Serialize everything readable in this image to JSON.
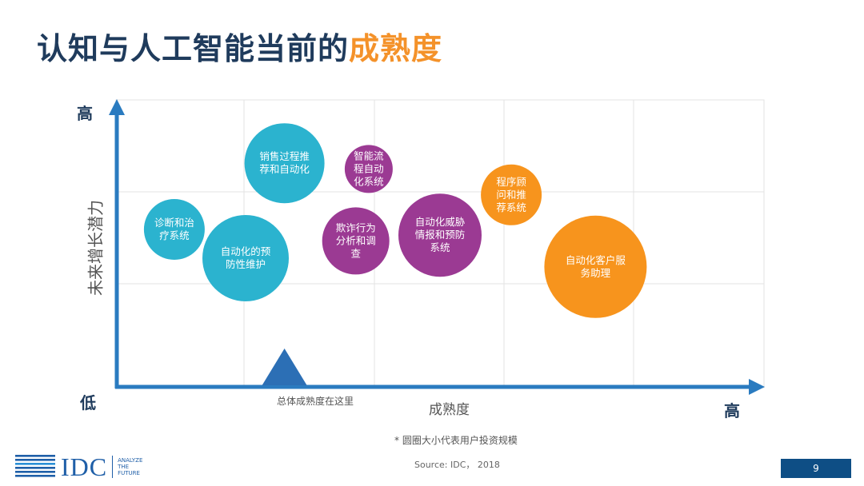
{
  "header": {
    "title_part1": "认知与人工智能当前的",
    "title_part2": "成熟度"
  },
  "chart_data": {
    "type": "bubble",
    "ylabel": "未来增长潜力",
    "xlabel": "成熟度",
    "y_high": "高",
    "y_low": "低",
    "x_high": "高",
    "marker_label": "总体成熟度在这里",
    "marker_x": 2.6,
    "grid": true,
    "xlim": [
      0,
      10
    ],
    "ylim": [
      0,
      10
    ],
    "colors": {
      "teal": "#2bb3cf",
      "purple": "#9b3a93",
      "orange": "#f7941d",
      "axis": "#2a7bc0",
      "marker": "#2c6fb5"
    },
    "series": [
      {
        "name": "诊断和治疗系统",
        "lines": [
          "诊断和治",
          "疗系统"
        ],
        "x": 0.9,
        "y": 5.5,
        "size": 1.9,
        "color": "teal"
      },
      {
        "name": "销售过程推荐和自动化",
        "lines": [
          "销售过程推",
          "荐和自动化"
        ],
        "x": 2.6,
        "y": 7.8,
        "size": 2.5,
        "color": "teal"
      },
      {
        "name": "自动化的预防性维护",
        "lines": [
          "自动化的预",
          "防性维护"
        ],
        "x": 2.0,
        "y": 4.5,
        "size": 2.7,
        "color": "teal"
      },
      {
        "name": "智能流程自动化系统",
        "lines": [
          "智能流",
          "程自动",
          "化系统"
        ],
        "x": 3.9,
        "y": 7.6,
        "size": 1.5,
        "color": "purple"
      },
      {
        "name": "欺诈行为分析和调查",
        "lines": [
          "欺诈行为",
          "分析和调",
          "查"
        ],
        "x": 3.7,
        "y": 5.1,
        "size": 2.1,
        "color": "purple"
      },
      {
        "name": "自动化威胁情报和预防系统",
        "lines": [
          "自动化威胁",
          "情报和预防",
          "系统"
        ],
        "x": 5.0,
        "y": 5.3,
        "size": 2.6,
        "color": "purple"
      },
      {
        "name": "程序顾问和推荐系统",
        "lines": [
          "程序顾",
          "问和推",
          "荐系统"
        ],
        "x": 6.1,
        "y": 6.7,
        "size": 1.9,
        "color": "orange"
      },
      {
        "name": "自动化客户服务助理",
        "lines": [
          "自动化客户服",
          "务助理"
        ],
        "x": 7.4,
        "y": 4.2,
        "size": 3.2,
        "color": "orange"
      }
    ]
  },
  "footer": {
    "footnote": "* 圆圈大小代表用户投资规模",
    "source": "Source: IDC，  2018",
    "logo_text": "IDC",
    "logo_tagline": [
      "ANALYZE",
      "THE",
      "FUTURE"
    ],
    "page_number": "9"
  }
}
